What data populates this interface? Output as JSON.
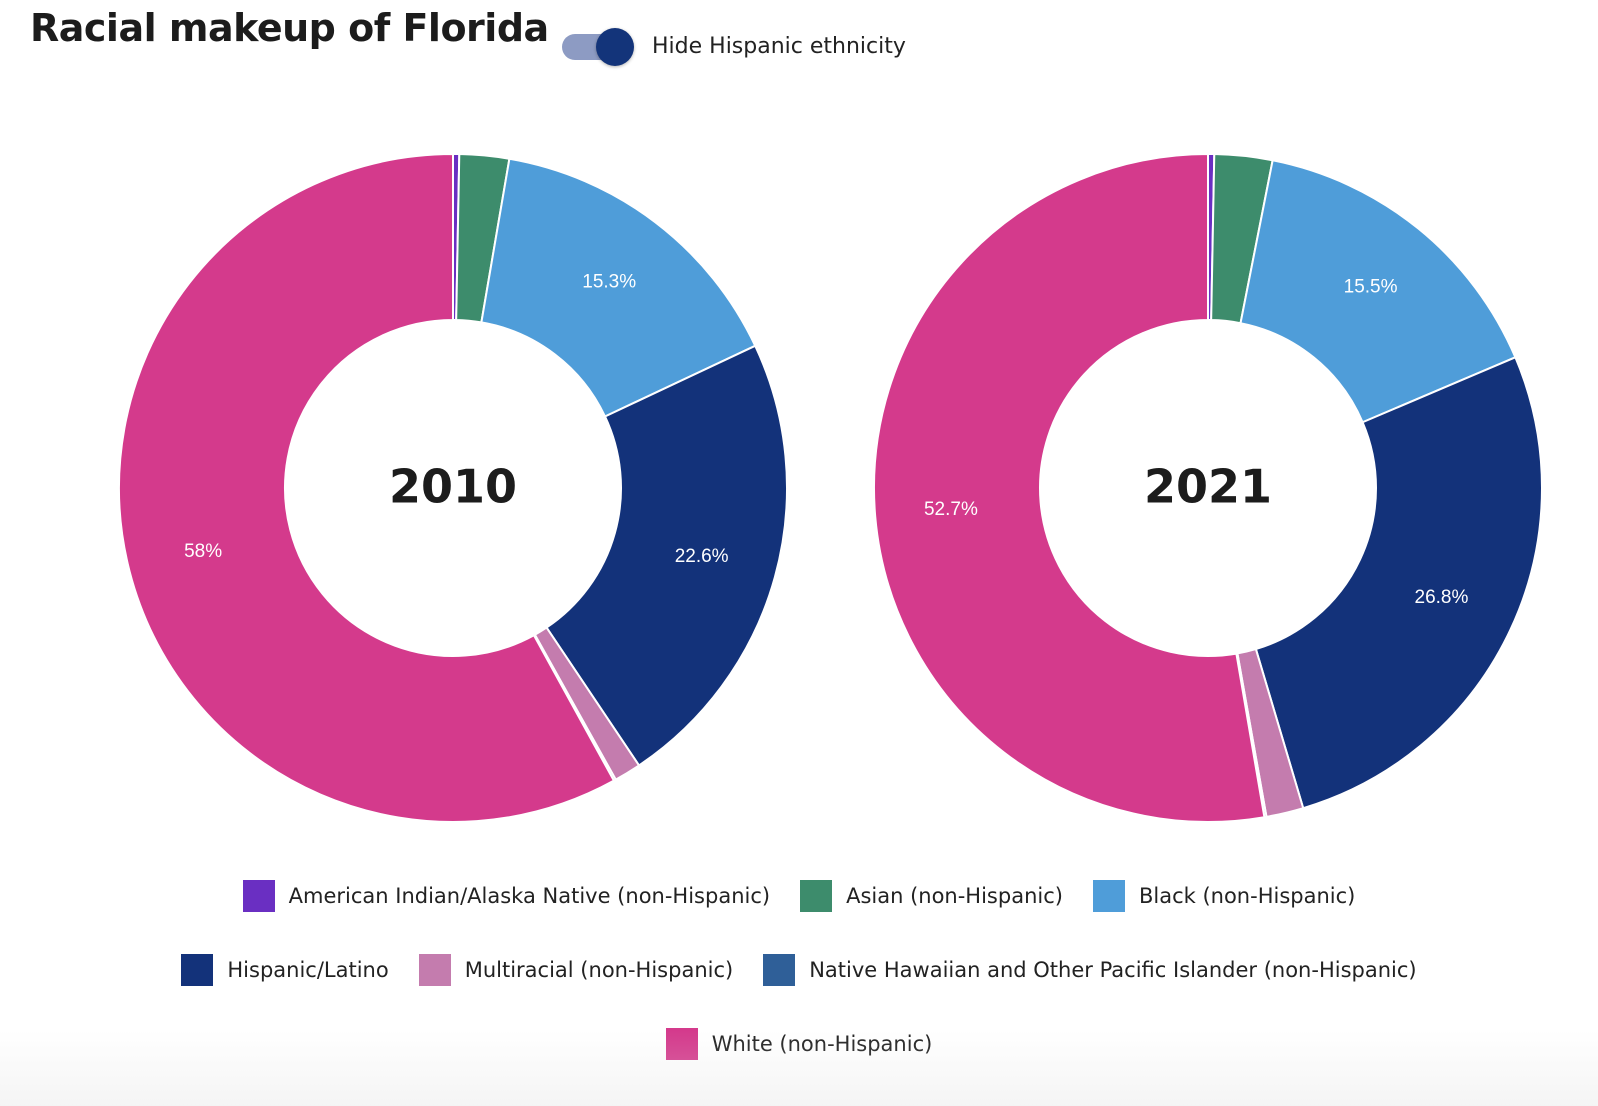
{
  "header": {
    "title": "Racial makeup of Florida",
    "toggle_label": "Hide Hispanic ethnicity",
    "toggle_on": true
  },
  "colors": {
    "american_indian": "#6a2fc2",
    "asian": "#3d8c6c",
    "black": "#4f9dd9",
    "hispanic": "#13327a",
    "multiracial": "#c47cae",
    "native_hawaiian": "#2f5f98",
    "white": "#d43a8c"
  },
  "legend": [
    {
      "label": "American Indian/Alaska Native (non-Hispanic)",
      "color": "#6a2fc2"
    },
    {
      "label": "Asian (non-Hispanic)",
      "color": "#3d8c6c"
    },
    {
      "label": "Black (non-Hispanic)",
      "color": "#4f9dd9"
    },
    {
      "label": "Hispanic/Latino",
      "color": "#13327a"
    },
    {
      "label": "Multiracial (non-Hispanic)",
      "color": "#c47cae"
    },
    {
      "label": "Native Hawaiian and Other Pacific Islander (non-Hispanic)",
      "color": "#2f5f98"
    },
    {
      "label": "White (non-Hispanic)",
      "color": "#d43a8c"
    }
  ],
  "chart_data": [
    {
      "type": "pie",
      "title": "2010",
      "categories": [
        "American Indian/Alaska Native (non-Hispanic)",
        "Asian (non-Hispanic)",
        "Black (non-Hispanic)",
        "Hispanic/Latino",
        "Multiracial (non-Hispanic)",
        "Native Hawaiian and Other Pacific Islander (non-Hispanic)",
        "White (non-Hispanic)"
      ],
      "values": [
        0.3,
        2.4,
        15.3,
        22.6,
        1.3,
        0.1,
        58
      ],
      "labels": [
        "",
        "",
        "15.3%",
        "22.6%",
        "",
        "",
        "58%"
      ]
    },
    {
      "type": "pie",
      "title": "2021",
      "categories": [
        "American Indian/Alaska Native (non-Hispanic)",
        "Asian (non-Hispanic)",
        "Black (non-Hispanic)",
        "Hispanic/Latino",
        "Multiracial (non-Hispanic)",
        "Native Hawaiian and Other Pacific Islander (non-Hispanic)",
        "White (non-Hispanic)"
      ],
      "values": [
        0.3,
        2.8,
        15.5,
        26.8,
        1.8,
        0.1,
        52.7
      ],
      "labels": [
        "",
        "",
        "15.5%",
        "26.8%",
        "",
        "",
        "52.7%"
      ]
    }
  ]
}
